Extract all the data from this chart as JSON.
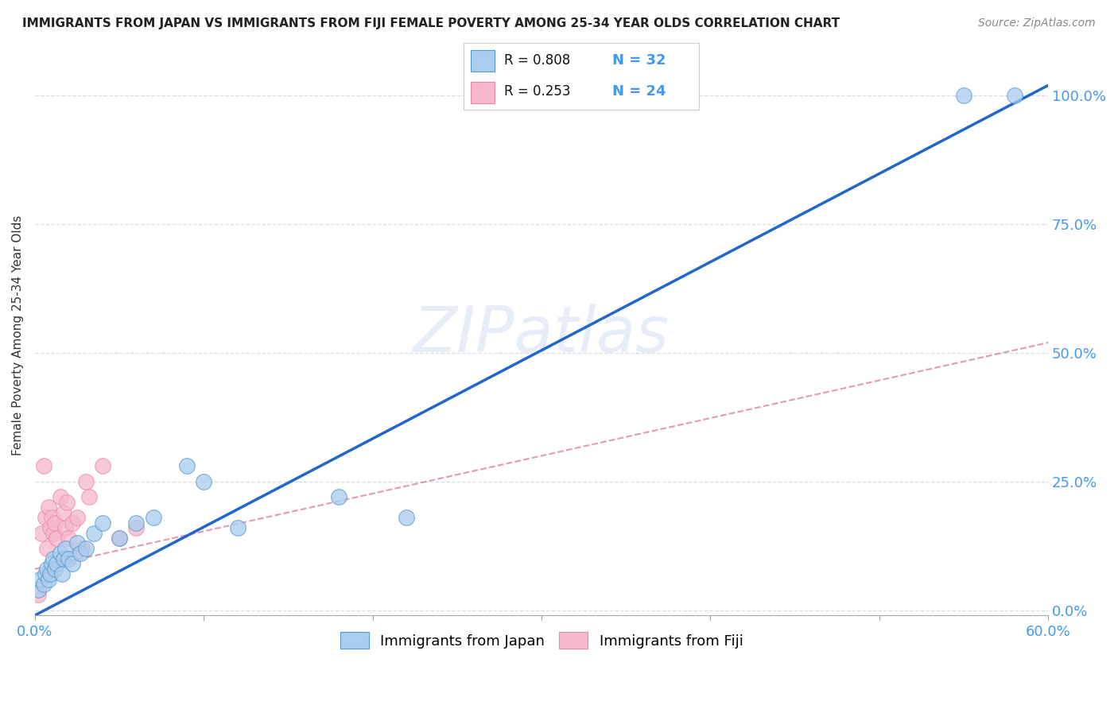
{
  "title": "IMMIGRANTS FROM JAPAN VS IMMIGRANTS FROM FIJI FEMALE POVERTY AMONG 25-34 YEAR OLDS CORRELATION CHART",
  "source": "Source: ZipAtlas.com",
  "ylabel": "Female Poverty Among 25-34 Year Olds",
  "xlim": [
    0.0,
    0.6
  ],
  "ylim": [
    -0.01,
    1.08
  ],
  "xticks": [
    0.0,
    0.1,
    0.2,
    0.3,
    0.4,
    0.5,
    0.6
  ],
  "xticklabels": [
    "0.0%",
    "",
    "",
    "",
    "",
    "",
    "60.0%"
  ],
  "yticks_right": [
    0.0,
    0.25,
    0.5,
    0.75,
    1.0
  ],
  "yticklabels_right": [
    "0.0%",
    "25.0%",
    "50.0%",
    "75.0%",
    "100.0%"
  ],
  "japan_x": [
    0.002,
    0.003,
    0.005,
    0.006,
    0.007,
    0.008,
    0.009,
    0.01,
    0.011,
    0.012,
    0.013,
    0.015,
    0.016,
    0.017,
    0.018,
    0.02,
    0.022,
    0.025,
    0.027,
    0.03,
    0.035,
    0.04,
    0.05,
    0.06,
    0.07,
    0.09,
    0.1,
    0.12,
    0.18,
    0.22,
    0.55,
    0.58
  ],
  "japan_y": [
    0.04,
    0.06,
    0.05,
    0.07,
    0.08,
    0.06,
    0.07,
    0.09,
    0.1,
    0.08,
    0.09,
    0.11,
    0.07,
    0.1,
    0.12,
    0.1,
    0.09,
    0.13,
    0.11,
    0.12,
    0.15,
    0.17,
    0.14,
    0.17,
    0.18,
    0.28,
    0.25,
    0.16,
    0.22,
    0.18,
    1.0,
    1.0
  ],
  "fiji_x": [
    0.002,
    0.004,
    0.005,
    0.006,
    0.007,
    0.008,
    0.009,
    0.01,
    0.011,
    0.012,
    0.013,
    0.015,
    0.017,
    0.018,
    0.019,
    0.02,
    0.022,
    0.025,
    0.028,
    0.03,
    0.032,
    0.04,
    0.05,
    0.06
  ],
  "fiji_y": [
    0.03,
    0.15,
    0.28,
    0.18,
    0.12,
    0.2,
    0.16,
    0.18,
    0.15,
    0.17,
    0.14,
    0.22,
    0.19,
    0.16,
    0.21,
    0.14,
    0.17,
    0.18,
    0.12,
    0.25,
    0.22,
    0.28,
    0.14,
    0.16
  ],
  "japan_line_x": [
    0.0,
    0.6
  ],
  "japan_line_y": [
    -0.01,
    1.02
  ],
  "fiji_line_x": [
    0.0,
    0.6
  ],
  "fiji_line_y": [
    0.08,
    0.52
  ],
  "japan_R": 0.808,
  "japan_N": 32,
  "fiji_R": 0.253,
  "fiji_N": 24,
  "japan_color": "#aaccee",
  "fiji_color": "#f5b8cc",
  "japan_scatter_edge": "#5599cc",
  "fiji_scatter_edge": "#ee88aa",
  "japan_line_color": "#2266cc",
  "fiji_line_color": "#dd88aa",
  "background_color": "#ffffff",
  "grid_color": "#d4dce8",
  "watermark": "ZIPatlas",
  "text_blue": "#4499ee",
  "title_color": "#222222",
  "source_color": "#888888"
}
